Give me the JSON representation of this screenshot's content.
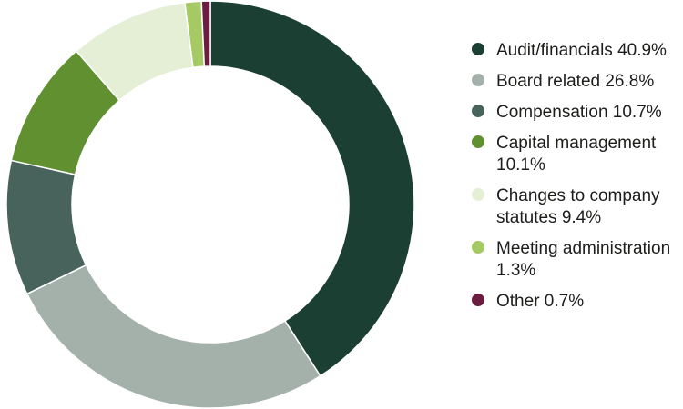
{
  "chart_data": {
    "type": "pie",
    "variant": "donut",
    "title": "",
    "legend_position": "right",
    "slices": [
      {
        "label": "Audit/financials",
        "value": 40.9,
        "legend_text": "Audit/financials 40.9%",
        "color": "#1b3f33"
      },
      {
        "label": "Board related",
        "value": 26.8,
        "legend_text": "Board related 26.8%",
        "color": "#a4b1ab"
      },
      {
        "label": "Compensation",
        "value": 10.7,
        "legend_text": "Compensation 10.7%",
        "color": "#48635b"
      },
      {
        "label": "Capital management",
        "value": 10.1,
        "legend_text": "Capital management 10.1%",
        "color": "#60902f"
      },
      {
        "label": "Changes to company statutes",
        "value": 9.4,
        "legend_text": "Changes to company statutes 9.4%",
        "color": "#e4efd6"
      },
      {
        "label": "Meeting administration",
        "value": 1.3,
        "legend_text": "Meeting administration 1.3%",
        "color": "#a5ca64"
      },
      {
        "label": "Other",
        "value": 0.7,
        "legend_text": "Other 0.7%",
        "color": "#6a1c41"
      }
    ]
  }
}
